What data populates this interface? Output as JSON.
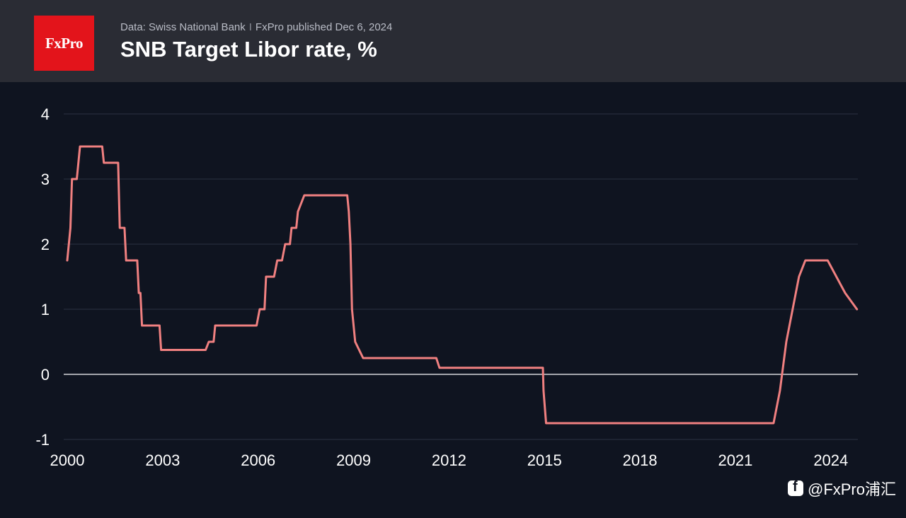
{
  "brand": {
    "logo_text": "FxPro",
    "color": "#e3141b"
  },
  "header": {
    "source": "Data: Swiss National Bank",
    "separator": "I",
    "published": "FxPro published Dec 6, 2024",
    "title": "SNB Target Libor rate, %"
  },
  "watermark": {
    "text": "@FxPro浦汇",
    "icon": "social-app-icon"
  },
  "colors": {
    "background": "#0f1420",
    "header_bg": "#2a2c34",
    "line": "#f08080",
    "grid": "#2b3242",
    "zero_line": "#ffffff"
  },
  "chart_data": {
    "type": "line",
    "title": "SNB Target Libor rate, %",
    "xlabel": "",
    "ylabel": "",
    "xlim": [
      2000.0,
      2024.85
    ],
    "ylim": [
      -1,
      4
    ],
    "yticks": [
      4,
      3,
      2,
      1,
      0,
      -1
    ],
    "ytick_labels": [
      "4",
      "3",
      "2",
      "1",
      "0",
      "-1"
    ],
    "xticks": [
      2000,
      2003,
      2006,
      2009,
      2012,
      2015,
      2018,
      2021,
      2024
    ],
    "xtick_labels": [
      "2000",
      "2003",
      "2006",
      "2009",
      "2012",
      "2015",
      "2018",
      "2021",
      "2024"
    ],
    "grid": true,
    "legend": "none",
    "series": [
      {
        "color": "#f08080",
        "x": [
          2000.0,
          2000.1,
          2000.15,
          2000.3,
          2000.3,
          2000.4,
          2001.1,
          2001.15,
          2001.6,
          2001.65,
          2001.8,
          2001.85,
          2002.2,
          2002.25,
          2002.3,
          2002.35,
          2002.9,
          2002.95,
          2004.35,
          2004.45,
          2004.6,
          2004.65,
          2005.95,
          2006.05,
          2006.2,
          2006.25,
          2006.5,
          2006.6,
          2006.75,
          2006.85,
          2007.0,
          2007.05,
          2007.2,
          2007.25,
          2007.45,
          2008.8,
          2008.85,
          2008.9,
          2008.95,
          2009.05,
          2009.3,
          2011.6,
          2011.7,
          2014.95,
          2014.97,
          2015.05,
          2022.2,
          2022.4,
          2022.6,
          2023.0,
          2023.2,
          2023.6,
          2023.9,
          2024.45,
          2024.82
        ],
        "y": [
          1.75,
          2.25,
          3.0,
          3.0,
          3.0,
          3.5,
          3.5,
          3.25,
          3.25,
          2.25,
          2.25,
          1.75,
          1.75,
          1.25,
          1.25,
          0.75,
          0.75,
          0.375,
          0.375,
          0.5,
          0.5,
          0.75,
          0.75,
          1.0,
          1.0,
          1.5,
          1.5,
          1.75,
          1.75,
          2.0,
          2.0,
          2.25,
          2.25,
          2.5,
          2.75,
          2.75,
          2.5,
          2.0,
          1.0,
          0.5,
          0.25,
          0.25,
          0.1,
          0.1,
          -0.25,
          -0.75,
          -0.75,
          -0.25,
          0.5,
          1.5,
          1.75,
          1.75,
          1.75,
          1.25,
          1.0
        ]
      }
    ]
  }
}
